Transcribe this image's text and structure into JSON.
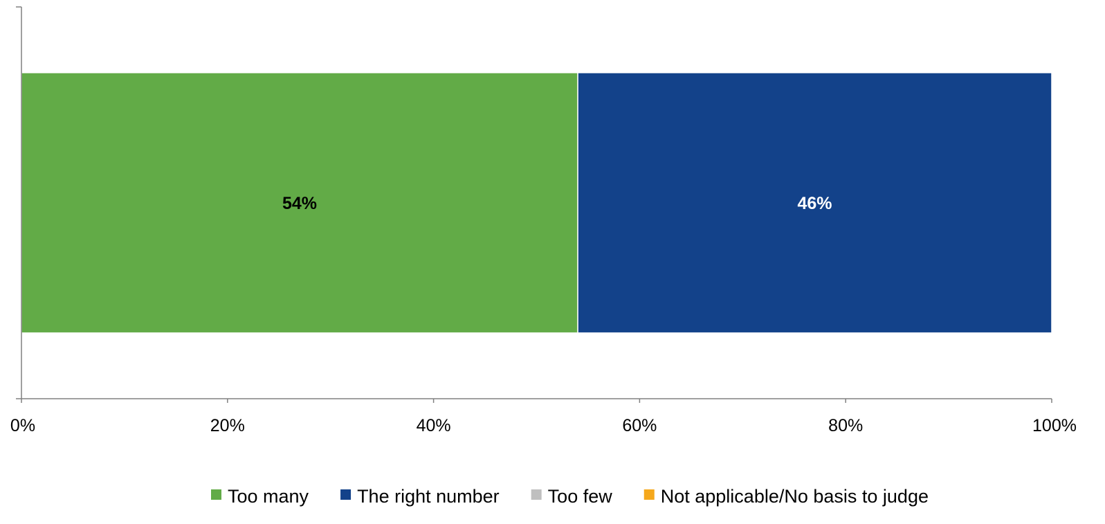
{
  "chart_data": {
    "type": "bar",
    "orientation": "horizontal",
    "stacked": true,
    "categories": [
      ""
    ],
    "series": [
      {
        "name": "Too many",
        "values": [
          54
        ],
        "color": "#62AB47",
        "label": "54%",
        "label_color": "#000000"
      },
      {
        "name": "The right number",
        "values": [
          46
        ],
        "color": "#13428A",
        "label": "46%",
        "label_color": "#FFFFFF"
      },
      {
        "name": "Too few",
        "values": [
          0
        ],
        "color": "#BFBFBF",
        "label": "",
        "label_color": "#000000"
      },
      {
        "name": "Not applicable/No basis to judge",
        "values": [
          0
        ],
        "color": "#F5A81C",
        "label": "",
        "label_color": "#000000"
      }
    ],
    "xlim": [
      0,
      100
    ],
    "x_ticks": [
      0,
      20,
      40,
      60,
      80,
      100
    ],
    "x_tick_labels": [
      "0%",
      "20%",
      "40%",
      "60%",
      "80%",
      "100%"
    ],
    "title": "",
    "xlabel": "",
    "ylabel": "",
    "grid": false,
    "legend_position": "bottom"
  }
}
